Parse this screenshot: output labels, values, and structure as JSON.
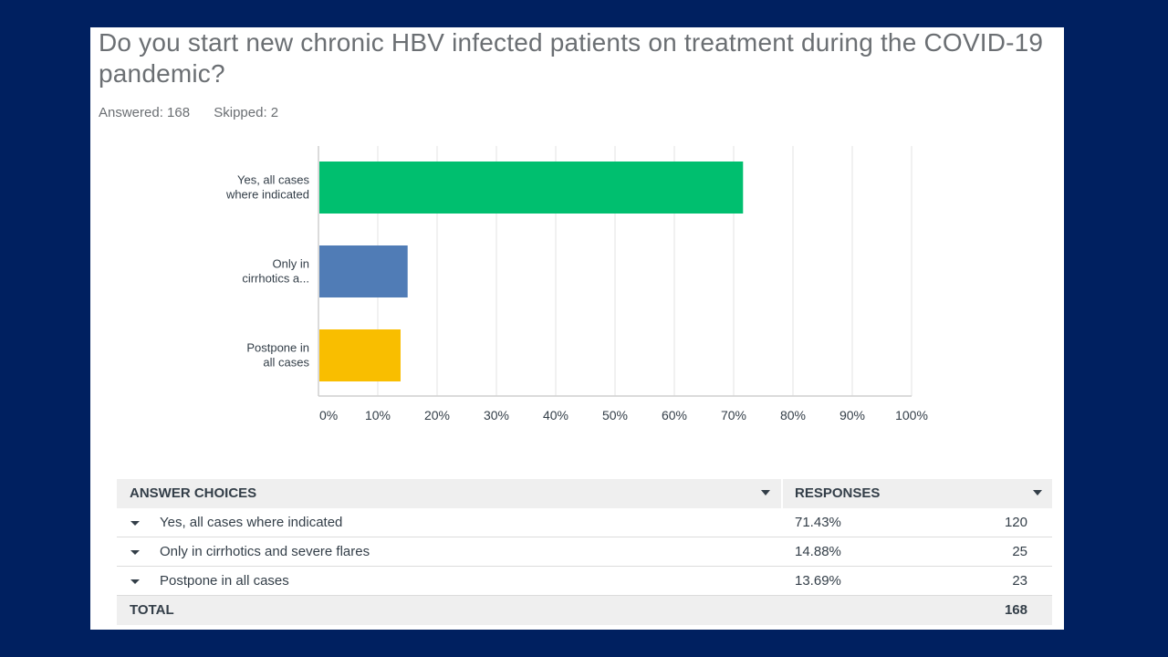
{
  "question": "Do you start new chronic HBV infected patients on treatment during the COVID-19 pandemic?",
  "meta": {
    "answered": "Answered: 168",
    "skipped": "Skipped: 2"
  },
  "colors": {
    "background": "#002060",
    "bar1": "#00BF6F",
    "bar2": "#507CB6",
    "bar3": "#F9BE00"
  },
  "chart_data": {
    "type": "bar",
    "orientation": "horizontal",
    "categories": [
      [
        "Yes, all cases",
        "where indicated"
      ],
      [
        "Only in",
        "cirrhotics a..."
      ],
      [
        "Postpone in",
        "all cases"
      ]
    ],
    "values": [
      71.43,
      14.88,
      13.69
    ],
    "colors": [
      "#00BF6F",
      "#507CB6",
      "#F9BE00"
    ],
    "xlim": [
      0,
      100
    ],
    "ticks": [
      "0%",
      "10%",
      "20%",
      "30%",
      "40%",
      "50%",
      "60%",
      "70%",
      "80%",
      "90%",
      "100%"
    ],
    "grid": true
  },
  "table": {
    "headers": {
      "choices": "ANSWER CHOICES",
      "responses": "RESPONSES"
    },
    "rows": [
      {
        "choice": "Yes, all cases where indicated",
        "percent": "71.43%",
        "count": "120"
      },
      {
        "choice": "Only in cirrhotics and severe flares",
        "percent": "14.88%",
        "count": "25"
      },
      {
        "choice": "Postpone in all cases",
        "percent": "13.69%",
        "count": "23"
      }
    ],
    "total": {
      "label": "TOTAL",
      "count": "168"
    }
  }
}
